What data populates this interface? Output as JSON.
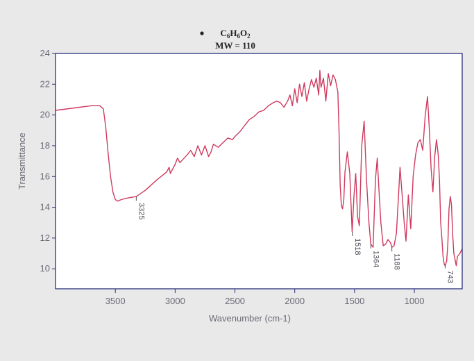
{
  "chart_data": {
    "type": "line",
    "title_line1": "C6H6O2",
    "title_line2": "MW = 110",
    "xlabel": "Wavenumber (cm-1)",
    "ylabel": "Transmittance",
    "xlim": [
      4000,
      600
    ],
    "ylim": [
      8.7,
      24
    ],
    "x_ticks": [
      "3500",
      "3000",
      "2500",
      "2000",
      "1500",
      "1000"
    ],
    "y_ticks": [
      "10",
      "12",
      "14",
      "16",
      "18",
      "20",
      "22",
      "24"
    ],
    "annotations": [
      {
        "label": "3325",
        "x": 3325,
        "y": 14.7
      },
      {
        "label": "1518",
        "x": 1518,
        "y": 12.4
      },
      {
        "label": "1364",
        "x": 1364,
        "y": 11.6
      },
      {
        "label": "1188",
        "x": 1188,
        "y": 11.4
      },
      {
        "label": "743",
        "x": 743,
        "y": 10.3
      }
    ],
    "series": [
      {
        "x": [
          4000,
          3800,
          3700,
          3630,
          3600,
          3580,
          3560,
          3540,
          3520,
          3500,
          3480,
          3450,
          3400,
          3325,
          3250,
          3150,
          3070,
          3050,
          3040,
          3000,
          2980,
          2960,
          2900,
          2870,
          2840,
          2810,
          2780,
          2750,
          2720,
          2700,
          2680,
          2640,
          2600,
          2560,
          2520,
          2500,
          2460,
          2420,
          2380,
          2340,
          2300,
          2260,
          2220,
          2180,
          2150,
          2120,
          2090,
          2060,
          2040,
          2020,
          2000,
          1980,
          1960,
          1940,
          1920,
          1900,
          1880,
          1860,
          1840,
          1820,
          1800,
          1790,
          1780,
          1760,
          1740,
          1720,
          1700,
          1680,
          1660,
          1640,
          1630,
          1620,
          1610,
          1600,
          1590,
          1580,
          1560,
          1540,
          1520,
          1505,
          1490,
          1475,
          1460,
          1440,
          1420,
          1400,
          1380,
          1364,
          1345,
          1325,
          1310,
          1295,
          1280,
          1260,
          1240,
          1220,
          1200,
          1188,
          1170,
          1150,
          1135,
          1120,
          1100,
          1085,
          1070,
          1050,
          1030,
          1010,
          990,
          970,
          950,
          930,
          910,
          890,
          875,
          860,
          845,
          830,
          815,
          800,
          790,
          780,
          770,
          760,
          750,
          743,
          730,
          720,
          710,
          700,
          690,
          680,
          670,
          660,
          650,
          640,
          620,
          600
        ],
        "y": [
          20.3,
          20.5,
          20.6,
          20.6,
          20.4,
          19.2,
          17.5,
          16.0,
          15.0,
          14.5,
          14.4,
          14.5,
          14.6,
          14.7,
          15.1,
          15.8,
          16.3,
          16.6,
          16.2,
          16.8,
          17.2,
          16.9,
          17.4,
          17.7,
          17.3,
          18.0,
          17.4,
          18.0,
          17.3,
          17.6,
          18.1,
          17.9,
          18.2,
          18.5,
          18.4,
          18.6,
          18.9,
          19.3,
          19.7,
          19.9,
          20.2,
          20.3,
          20.6,
          20.8,
          20.9,
          20.8,
          20.5,
          20.9,
          21.3,
          20.6,
          21.7,
          20.8,
          22.0,
          21.2,
          22.1,
          20.9,
          21.7,
          22.3,
          21.8,
          22.4,
          21.3,
          22.9,
          21.8,
          22.4,
          20.9,
          22.7,
          21.9,
          22.6,
          22.3,
          21.5,
          19.0,
          15.4,
          14.1,
          13.9,
          14.5,
          16.3,
          17.6,
          16.2,
          12.4,
          14.7,
          16.2,
          13.4,
          12.8,
          18.0,
          19.6,
          15.8,
          13.0,
          11.6,
          11.4,
          15.8,
          17.2,
          15.0,
          13.0,
          11.5,
          11.6,
          11.9,
          11.7,
          11.4,
          11.5,
          12.3,
          14.4,
          16.6,
          14.6,
          13.0,
          11.8,
          14.8,
          12.6,
          16.0,
          17.4,
          18.2,
          18.4,
          17.7,
          19.9,
          21.2,
          19.1,
          16.5,
          15.0,
          17.3,
          18.4,
          17.4,
          15.7,
          13.0,
          12.0,
          10.8,
          10.3,
          10.2,
          10.5,
          11.6,
          13.9,
          14.7,
          14.2,
          12.3,
          11.0,
          10.6,
          10.2,
          10.8,
          11.0,
          11.3
        ]
      }
    ],
    "colors": {
      "line": "#cf3a5e",
      "frame": "#2a2f7a",
      "text": "#6a6a74",
      "background": "#ffffff",
      "page": "#e9e9ea"
    }
  }
}
